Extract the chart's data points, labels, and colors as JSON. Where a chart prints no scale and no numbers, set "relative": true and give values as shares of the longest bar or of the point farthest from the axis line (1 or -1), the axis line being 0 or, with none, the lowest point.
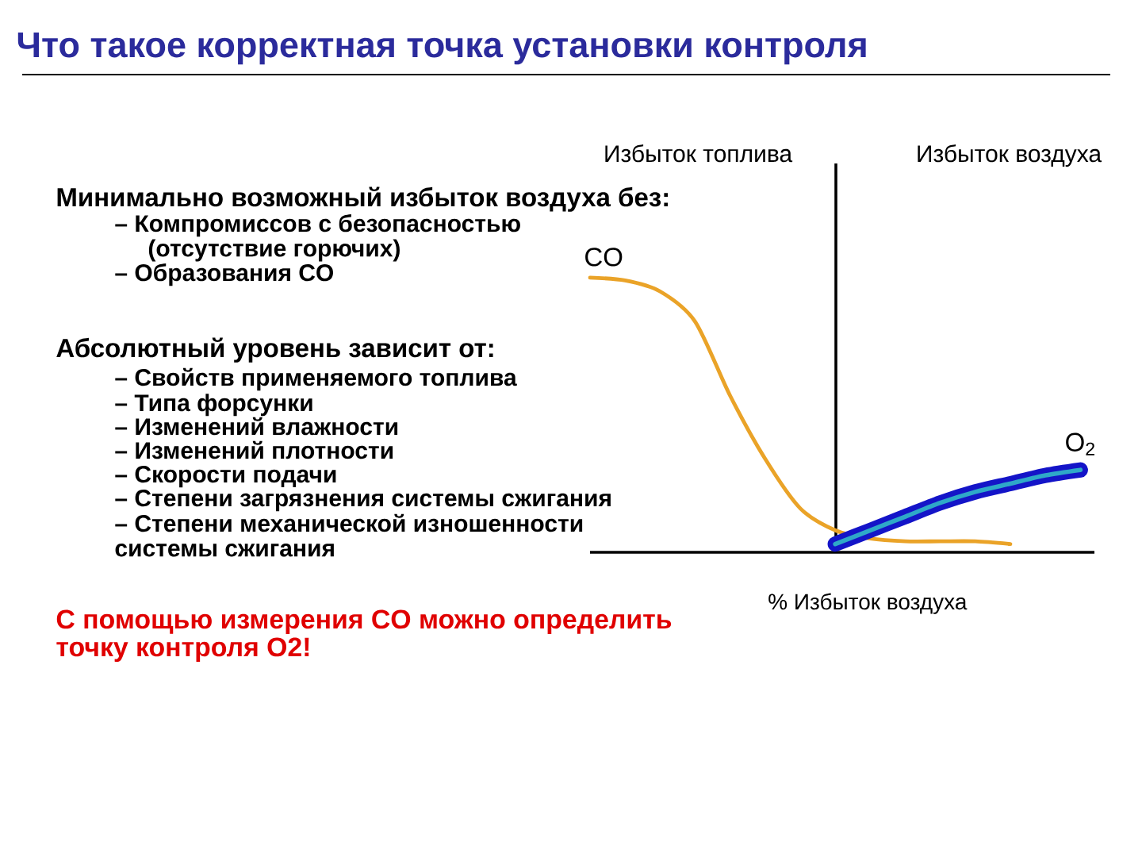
{
  "chart_data": {
    "type": "line",
    "title": "Что такое корректная точка установки контроля",
    "xlabel": "% Избыток воздуха",
    "relative": true,
    "marker": "none",
    "line_style": "solid",
    "categories": [
      null,
      null,
      null,
      null,
      null,
      null,
      null,
      null,
      null,
      null,
      null,
      null,
      null,
      null,
      null
    ],
    "series": [
      {
        "name": "CO",
        "color": "#eaa328",
        "values": [
          1,
          0.99,
          0.95,
          0.84,
          0.57,
          0.34,
          0.16,
          0.08,
          0.05,
          0.04,
          0.04,
          0.04,
          0.03,
          null,
          null
        ]
      },
      {
        "name": "O$_{2}$",
        "color": "#1414c8",
        "values": [
          null,
          null,
          null,
          null,
          null,
          null,
          null,
          0.03,
          0.08,
          0.13,
          0.18,
          0.22,
          0.25,
          0.28,
          0.3
        ]
      }
    ],
    "annotations": [
      "Избыток топлива",
      "Избыток воздуха",
      "Минимально возможный избыток воздуха без:",
      "– Компромиссов с безопасностью (отсутствие горючих)",
      "– Образования CO",
      "Абсолютный уровень зависит от:",
      "– Свойств применяемого топлива",
      "– Типа форсунки",
      "– Изменений влажности",
      "– Изменений плотности",
      "– Скорости подачи",
      "– Степени загрязнения системы сжигания",
      "– Степени механической изношенности системы сжигания",
      "С помощью измерения CO можно определить точку контроля O2!"
    ]
  }
}
